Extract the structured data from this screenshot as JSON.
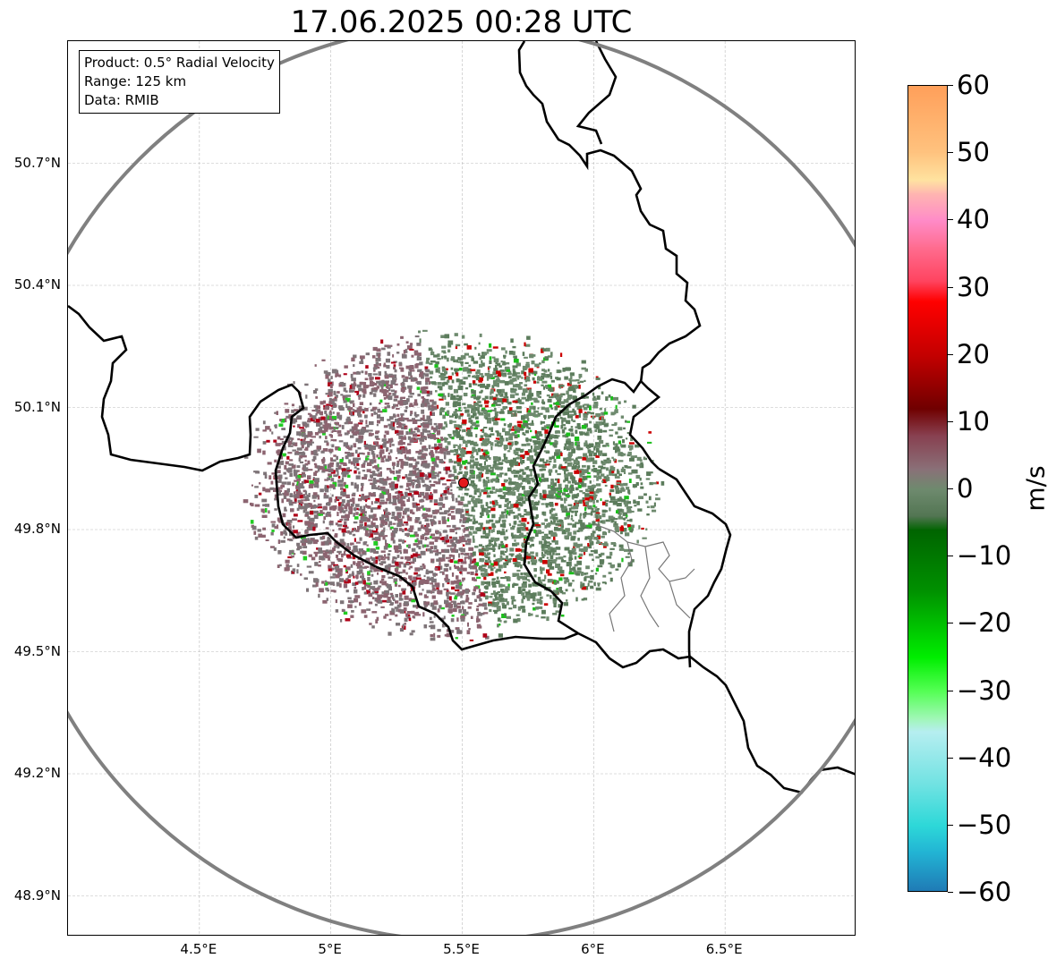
{
  "title": "17.06.2025 00:28 UTC",
  "info": {
    "product": "Product: 0.5° Radial Velocity",
    "range": "Range: 125 km",
    "data": "Data: RMIB"
  },
  "map_axes": {
    "lon_range": [
      4.0,
      7.0
    ],
    "lat_range": [
      48.8,
      51.0
    ],
    "lat_ticks": [
      {
        "value": 50.7,
        "label": "50.7°N"
      },
      {
        "value": 50.4,
        "label": "50.4°N"
      },
      {
        "value": 50.1,
        "label": "50.1°N"
      },
      {
        "value": 49.8,
        "label": "49.8°N"
      },
      {
        "value": 49.5,
        "label": "49.5°N"
      },
      {
        "value": 49.2,
        "label": "49.2°N"
      },
      {
        "value": 48.9,
        "label": "48.9°N"
      }
    ],
    "lon_ticks": [
      {
        "value": 4.5,
        "label": "4.5°E"
      },
      {
        "value": 5.0,
        "label": "5°E"
      },
      {
        "value": 5.5,
        "label": "5.5°E"
      },
      {
        "value": 6.0,
        "label": "6°E"
      },
      {
        "value": 6.5,
        "label": "6.5°E"
      }
    ],
    "gridlines": true
  },
  "radar_site": {
    "lon": 5.505,
    "lat": 49.915,
    "color": "#e41a1c"
  },
  "range_ring_km": 125,
  "colorbar": {
    "unit": "m/s",
    "min": -60,
    "max": 60,
    "tick_labels": [
      "60",
      "50",
      "40",
      "30",
      "20",
      "10",
      "0",
      "−10",
      "−20",
      "−30",
      "−40",
      "−50",
      "−60"
    ],
    "stops": [
      {
        "value": 60,
        "color": "#ff9f5a"
      },
      {
        "value": 50,
        "color": "#ffc37f"
      },
      {
        "value": 46,
        "color": "#ffe3a0"
      },
      {
        "value": 44,
        "color": "#ffb6b0"
      },
      {
        "value": 40,
        "color": "#ff8bc8"
      },
      {
        "value": 36,
        "color": "#ff6d90"
      },
      {
        "value": 31,
        "color": "#ff4460"
      },
      {
        "value": 28,
        "color": "#ff0000"
      },
      {
        "value": 20,
        "color": "#c40000"
      },
      {
        "value": 12,
        "color": "#700000"
      },
      {
        "value": 8,
        "color": "#884050"
      },
      {
        "value": 3,
        "color": "#8a7078"
      },
      {
        "value": 0,
        "color": "#6e8a6e"
      },
      {
        "value": -4,
        "color": "#527552"
      },
      {
        "value": -6,
        "color": "#006400"
      },
      {
        "value": -15,
        "color": "#009000"
      },
      {
        "value": -25,
        "color": "#00ee00"
      },
      {
        "value": -30,
        "color": "#55ff55"
      },
      {
        "value": -34,
        "color": "#9ff7b5"
      },
      {
        "value": -36,
        "color": "#b6eef0"
      },
      {
        "value": -44,
        "color": "#6fe2e2"
      },
      {
        "value": -50,
        "color": "#2dd8d8"
      },
      {
        "value": -54,
        "color": "#22b4d4"
      },
      {
        "value": -60,
        "color": "#1f78b4"
      }
    ]
  }
}
